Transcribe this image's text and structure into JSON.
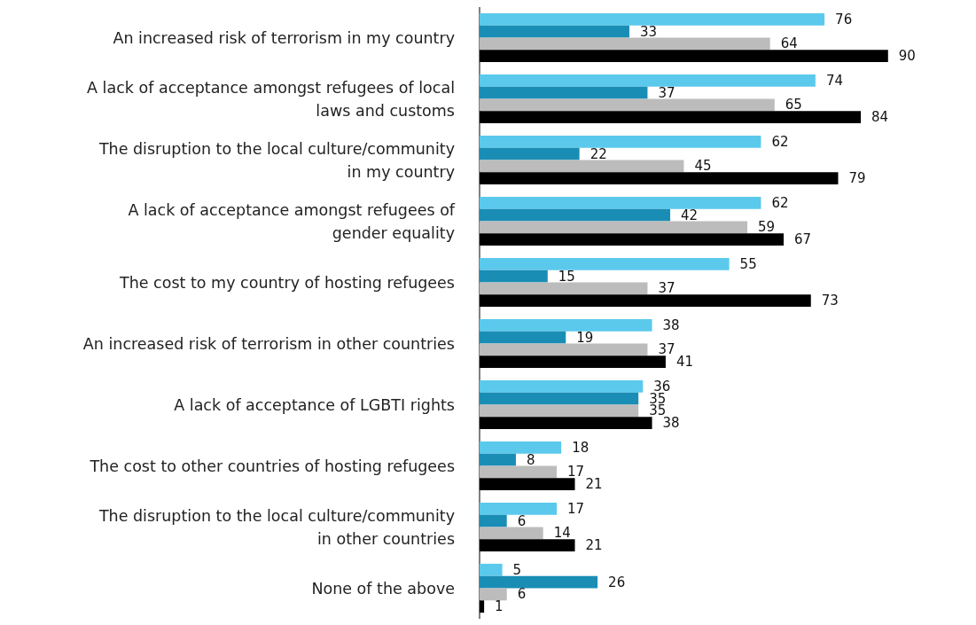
{
  "chart_data": {
    "type": "bar",
    "orientation": "horizontal",
    "data_labels": true,
    "categories": [
      "An increased risk of terrorism in my country",
      "A lack of acceptance amongst refugees of local\nlaws and customs",
      "The disruption to the local culture/community\nin my country",
      "A lack of acceptance amongst refugees of\ngender equality",
      "The cost to my country of hosting refugees",
      "An increased risk of terrorism in other countries",
      "A lack of acceptance of LGBTI rights",
      "The cost to other countries of hosting refugees",
      "The disruption to the local culture/community\nin other countries",
      "None of the above"
    ],
    "series": [
      {
        "color": "#5bc9ec",
        "values": [
          76,
          74,
          62,
          62,
          55,
          38,
          36,
          18,
          17,
          5
        ]
      },
      {
        "color": "#1a8db5",
        "values": [
          33,
          37,
          22,
          42,
          15,
          19,
          35,
          8,
          6,
          26
        ]
      },
      {
        "color": "#bdbcbc",
        "values": [
          64,
          65,
          45,
          59,
          37,
          37,
          35,
          17,
          14,
          6
        ]
      },
      {
        "color": "#000000",
        "values": [
          90,
          84,
          79,
          67,
          73,
          41,
          38,
          21,
          21,
          1
        ]
      }
    ]
  }
}
